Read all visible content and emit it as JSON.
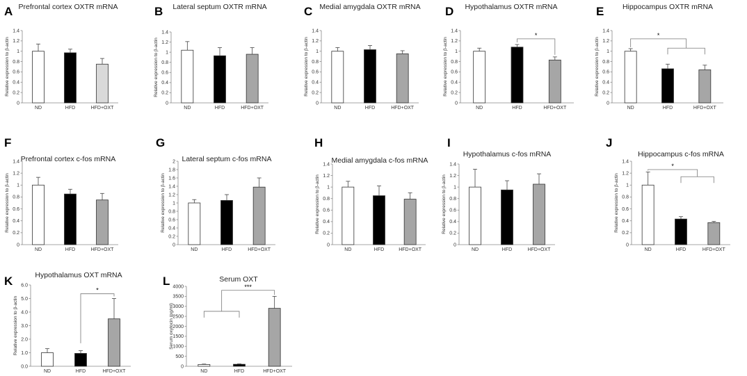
{
  "figure": {
    "colors": {
      "ND": "#ffffff",
      "HFD": "#000000",
      "HFD+OXT": "#a6a6a6",
      "HFD+OXT_light": "#d9d9d9"
    }
  },
  "chart_data": [
    {
      "id": "A",
      "panel": "A",
      "type": "bar",
      "title": "Prefrontal cortex OXTR  mRNA",
      "ylabel": "Relative expression to β-actin",
      "categories": [
        "ND",
        "HFD",
        "HFD+OXT"
      ],
      "values": [
        1.0,
        0.97,
        0.75
      ],
      "errors": [
        0.14,
        0.07,
        0.11
      ],
      "ylim": [
        0,
        1.4
      ],
      "yticks": [
        "0",
        "0.2",
        "0.4",
        "0.6",
        "0.8",
        "1",
        "1.2",
        "1.4"
      ],
      "colors": [
        "#ffffff",
        "#000000",
        "#d9d9d9"
      ],
      "significance": []
    },
    {
      "id": "B",
      "panel": "B",
      "type": "bar",
      "title": "Lateral septum OXTR mRNA",
      "ylabel": "Relative expression to β-actin",
      "categories": [
        "ND",
        "HFD",
        "HFD+OXT"
      ],
      "values": [
        1.04,
        0.93,
        0.96
      ],
      "errors": [
        0.17,
        0.16,
        0.13
      ],
      "ylim": [
        0,
        1.4
      ],
      "yticks": [
        "0",
        "0.2",
        "0.4",
        "0.6",
        "0.8",
        "1",
        "1.2",
        "1.4"
      ],
      "colors": [
        "#ffffff",
        "#000000",
        "#a6a6a6"
      ],
      "significance": []
    },
    {
      "id": "C",
      "panel": "C",
      "type": "bar",
      "title": "Medial amygdala OXTR  mRNA",
      "ylabel": "Relative expression to β-actin",
      "categories": [
        "ND",
        "HFD",
        "HFD+OXT"
      ],
      "values": [
        1.0,
        1.03,
        0.95
      ],
      "errors": [
        0.07,
        0.08,
        0.06
      ],
      "ylim": [
        0,
        1.4
      ],
      "yticks": [
        "0",
        "0.2",
        "0.4",
        "0.6",
        "0.8",
        "1",
        "1.2",
        "1.4"
      ],
      "colors": [
        "#ffffff",
        "#000000",
        "#a6a6a6"
      ],
      "significance": []
    },
    {
      "id": "D",
      "panel": "D",
      "type": "bar",
      "title": "Hypothalamus OXTR  mRNA",
      "ylabel": "Relative expression to β-actin",
      "categories": [
        "ND",
        "HFD",
        "HFD+OXT"
      ],
      "values": [
        1.0,
        1.08,
        0.83
      ],
      "errors": [
        0.06,
        0.05,
        0.06
      ],
      "ylim": [
        0,
        1.4
      ],
      "yticks": [
        "0",
        "0.2",
        "0.4",
        "0.6",
        "0.8",
        "1",
        "1.2",
        "1.4"
      ],
      "colors": [
        "#ffffff",
        "#000000",
        "#a6a6a6"
      ],
      "significance": [
        {
          "kind": "simple",
          "from": 1,
          "to": 2,
          "level": 1.24,
          "label": "*"
        }
      ]
    },
    {
      "id": "E",
      "panel": "E",
      "type": "bar",
      "title": "Hippocampus OXTR  mRNA",
      "ylabel": "Relative expression to β-actin",
      "categories": [
        "ND",
        "HFD",
        "HFD+OXT"
      ],
      "values": [
        1.0,
        0.66,
        0.64
      ],
      "errors": [
        0.05,
        0.09,
        0.09
      ],
      "ylim": [
        0,
        1.4
      ],
      "yticks": [
        "0",
        "0.2",
        "0.4",
        "0.6",
        "0.8",
        "1",
        "1.2",
        "1.4"
      ],
      "colors": [
        "#ffffff",
        "#000000",
        "#a6a6a6"
      ],
      "significance": [
        {
          "kind": "group",
          "single": 0,
          "group": [
            1,
            2
          ],
          "level": 1.24,
          "groupLevel": 1.06,
          "label": "*"
        }
      ]
    },
    {
      "id": "F",
      "panel": "F",
      "type": "bar",
      "title": "Prefrontal cortex c-fos  mRNA",
      "ylabel": "Relative expression to β-actin",
      "categories": [
        "ND",
        "HFD",
        "HFD+OXT"
      ],
      "values": [
        1.0,
        0.85,
        0.75
      ],
      "errors": [
        0.13,
        0.08,
        0.11
      ],
      "ylim": [
        0,
        1.4
      ],
      "yticks": [
        "0",
        "0.2",
        "0.4",
        "0.6",
        "0.8",
        "1",
        "1.2",
        "1.4"
      ],
      "colors": [
        "#ffffff",
        "#000000",
        "#a6a6a6"
      ],
      "significance": []
    },
    {
      "id": "G",
      "panel": "G",
      "type": "bar",
      "title": "Lateral septum c-fos  mRNA",
      "ylabel": "Relative expression to β-actin",
      "categories": [
        "ND",
        "HFD",
        "HFD+OXT"
      ],
      "values": [
        1.0,
        1.06,
        1.38
      ],
      "errors": [
        0.08,
        0.14,
        0.22
      ],
      "ylim": [
        0,
        2
      ],
      "yticks": [
        "0",
        "0.2",
        "0.4",
        "0.6",
        "0.8",
        "1",
        "1.2",
        "1.4",
        "1.6",
        "1.8",
        "2"
      ],
      "colors": [
        "#ffffff",
        "#000000",
        "#a6a6a6"
      ],
      "significance": []
    },
    {
      "id": "H",
      "panel": "H",
      "type": "bar",
      "title": "Medial amygdala c-fos  mRNA",
      "ylabel": "Relative expression to β-actin",
      "categories": [
        "ND",
        "HFD",
        "HFD+OXT"
      ],
      "values": [
        1.0,
        0.85,
        0.79
      ],
      "errors": [
        0.1,
        0.17,
        0.11
      ],
      "ylim": [
        0,
        1.4
      ],
      "yticks": [
        "0",
        "0.2",
        "0.4",
        "0.6",
        "0.8",
        "1",
        "1.2",
        "1.4"
      ],
      "colors": [
        "#ffffff",
        "#000000",
        "#a6a6a6"
      ],
      "significance": []
    },
    {
      "id": "I",
      "panel": "I",
      "type": "bar",
      "title": "Hypothalamus c-fos  mRNA",
      "ylabel": "Relative expression to β-actin",
      "categories": [
        "ND",
        "HFD",
        "HFD+OXT"
      ],
      "values": [
        1.0,
        0.95,
        1.05
      ],
      "errors": [
        0.31,
        0.16,
        0.18
      ],
      "ylim": [
        0,
        1.4
      ],
      "yticks": [
        "0",
        "0.2",
        "0.4",
        "0.6",
        "0.8",
        "1",
        "1.2",
        "1.4"
      ],
      "colors": [
        "#ffffff",
        "#000000",
        "#a6a6a6"
      ],
      "significance": []
    },
    {
      "id": "J",
      "panel": "J",
      "type": "bar",
      "title": "Hippocampus c-fos mRNA",
      "ylabel": "Relative expression to β-actin",
      "categories": [
        "ND",
        "HFD",
        "HFD+OXT"
      ],
      "values": [
        1.0,
        0.43,
        0.37
      ],
      "errors": [
        0.22,
        0.04,
        0.02
      ],
      "ylim": [
        0,
        1.4
      ],
      "yticks": [
        "0",
        "0.2",
        "0.4",
        "0.6",
        "0.8",
        "1",
        "1.2",
        "1.4"
      ],
      "colors": [
        "#ffffff",
        "#000000",
        "#a6a6a6"
      ],
      "significance": [
        {
          "kind": "group",
          "single": 0,
          "group": [
            1,
            2
          ],
          "level": 1.26,
          "groupLevel": 1.14,
          "label": "*"
        }
      ]
    },
    {
      "id": "K",
      "panel": "K",
      "type": "bar",
      "title": "Hypothalamus OXT mRNA",
      "ylabel": "Relative expression to β-actin",
      "categories": [
        "ND",
        "HFD",
        "HFD+OXT"
      ],
      "values": [
        1.0,
        0.95,
        3.5
      ],
      "errors": [
        0.3,
        0.2,
        1.5
      ],
      "ylim": [
        0,
        6
      ],
      "yticks": [
        "0.0",
        "1.0",
        "2.0",
        "3.0",
        "4.0",
        "5.0",
        "6.0"
      ],
      "colors": [
        "#ffffff",
        "#000000",
        "#a6a6a6"
      ],
      "significance": [
        {
          "kind": "simple",
          "from": 1,
          "to": 2,
          "level": 5.35,
          "bottom": 1.7,
          "label": "*"
        }
      ]
    },
    {
      "id": "L",
      "panel": "L",
      "type": "bar",
      "title": "Serum OXT",
      "ylabel": "Serum oxytocin (pg/ml)",
      "categories": [
        "ND",
        "HFD",
        "HFD+OXT"
      ],
      "values": [
        90,
        100,
        2900
      ],
      "errors": [
        20,
        20,
        600
      ],
      "ylim": [
        0,
        4000
      ],
      "yticks": [
        "0",
        "500",
        "1000",
        "1500",
        "2000",
        "2500",
        "3000",
        "3500",
        "4000"
      ],
      "colors": [
        "#ffffff",
        "#000000",
        "#a6a6a6"
      ],
      "significance": [
        {
          "kind": "group",
          "group": [
            0,
            1
          ],
          "single": 2,
          "level": 3800,
          "groupLevel": 2750,
          "label": "***"
        }
      ]
    }
  ]
}
